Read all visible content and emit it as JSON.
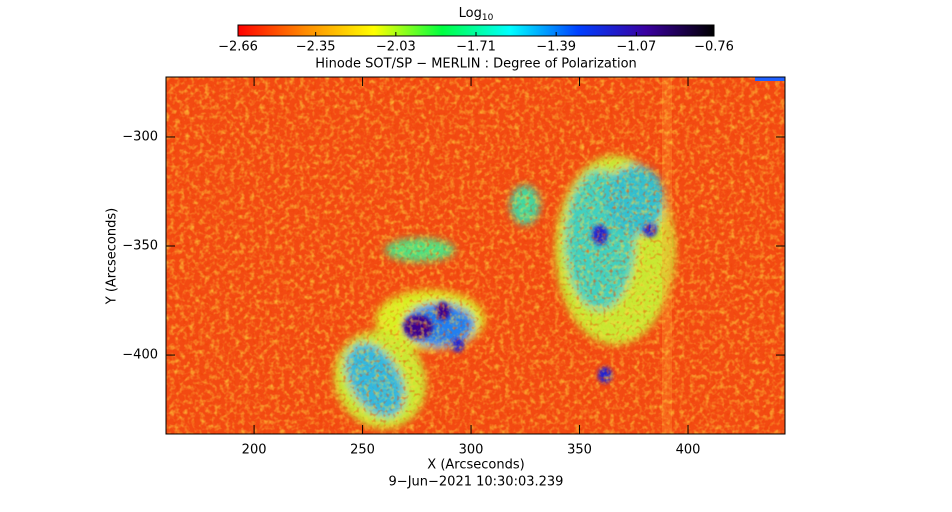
{
  "chart_data": {
    "type": "heatmap",
    "title": "Hinode SOT/SP − MERLIN : Degree of Polarization",
    "subtitle": "9−Jun−2021 10:30:03.239",
    "x_label": "X (Arcseconds)",
    "y_label": "Y (Arcseconds)",
    "xlim": [
      159.4,
      444.7
    ],
    "xticks": [
      200,
      250,
      300,
      350,
      400
    ],
    "ylim": [
      -436.2,
      -272.5
    ],
    "yticks": [
      {
        "value": -300,
        "label": "−300"
      },
      {
        "value": -350,
        "label": "−350"
      },
      {
        "value": -400,
        "label": "−400"
      }
    ],
    "colorbar_label": "Log",
    "colorbar_label_subscript": "10",
    "colorbar_lim": [
      -2.66,
      -0.76
    ],
    "colorbar_ticks": [
      {
        "value": -2.66,
        "label": "−2.66"
      },
      {
        "value": -2.35,
        "label": "−2.35"
      },
      {
        "value": -2.03,
        "label": "−2.03"
      },
      {
        "value": -1.71,
        "label": "−1.71"
      },
      {
        "value": -1.39,
        "label": "−1.39"
      },
      {
        "value": -1.07,
        "label": "−1.07"
      },
      {
        "value": -0.76,
        "label": "−0.76"
      }
    ],
    "colormap": [
      "#ff0000",
      "#ff8c00",
      "#ffff00",
      "#00ff40",
      "#00ffff",
      "#0040ff",
      "#3a00a0",
      "#000000"
    ]
  }
}
